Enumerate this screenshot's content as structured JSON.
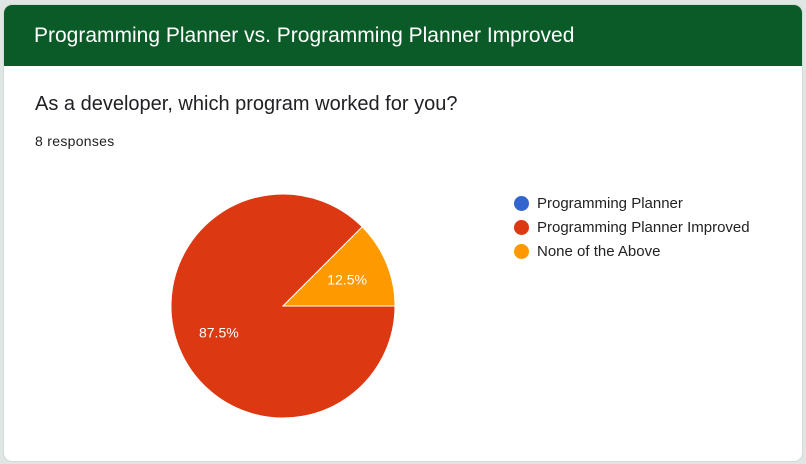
{
  "header": {
    "title": "Programming Planner vs. Programming Planner Improved"
  },
  "question": {
    "text": "As a developer, which program worked for you?",
    "responses": "8 responses"
  },
  "colors": {
    "header_bg": "#0a5b27",
    "programming_planner": "#3366cc",
    "programming_planner_improved": "#dc3912",
    "none_of_the_above": "#ff9900"
  },
  "chart_data": {
    "type": "pie",
    "categories": [
      "Programming Planner",
      "Programming Planner Improved",
      "None of the Above"
    ],
    "values": [
      0,
      87.5,
      12.5
    ],
    "colors": [
      "#3366cc",
      "#dc3912",
      "#ff9900"
    ],
    "data_labels": [
      "",
      "87.5%",
      "12.5%"
    ],
    "legend_position": "right"
  }
}
